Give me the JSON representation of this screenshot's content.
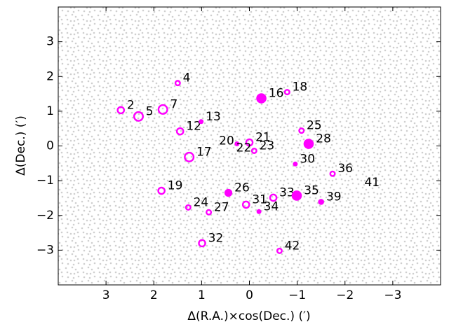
{
  "chart_data": {
    "type": "scatter",
    "xlabel": "Δ(R.A.)×cos(Dec.) (′)",
    "ylabel": "Δ(Dec.) (′)",
    "xlim": [
      4,
      -4
    ],
    "ylim": [
      -4,
      4
    ],
    "xticks": [
      3,
      2,
      1,
      0,
      {
        "value": -1,
        "label": "−1"
      },
      {
        "value": -2,
        "label": "−2"
      },
      {
        "value": -3,
        "label": "−3"
      }
    ],
    "yticks": [
      {
        "value": -3,
        "label": "−3"
      },
      {
        "value": -2,
        "label": "−2"
      },
      {
        "value": -1,
        "label": "−1"
      },
      0,
      1,
      2,
      3
    ],
    "color": "#ff00ff",
    "points": [
      {
        "label": "2",
        "x": 2.69,
        "y": 1.03,
        "marker": "open",
        "size": "m",
        "side": "right"
      },
      {
        "label": "4",
        "x": 1.5,
        "y": 1.81,
        "marker": "open",
        "size": "s",
        "side": "right"
      },
      {
        "label": "5",
        "x": 2.32,
        "y": 0.85,
        "marker": "open",
        "size": "l",
        "side": "right"
      },
      {
        "label": "7",
        "x": 1.81,
        "y": 1.05,
        "marker": "open",
        "size": "l",
        "side": "right"
      },
      {
        "label": "12",
        "x": 1.45,
        "y": 0.42,
        "marker": "open",
        "size": "m",
        "side": "right"
      },
      {
        "label": "13",
        "x": 1.01,
        "y": 0.7,
        "marker": "filled",
        "size": "xs",
        "side": "right"
      },
      {
        "label": "16",
        "x": -0.25,
        "y": 1.37,
        "marker": "filled",
        "size": "l",
        "side": "right"
      },
      {
        "label": "17",
        "x": 1.26,
        "y": -0.32,
        "marker": "open",
        "size": "l",
        "side": "right"
      },
      {
        "label": "18",
        "x": -0.79,
        "y": 1.55,
        "marker": "open",
        "size": "s",
        "side": "right"
      },
      {
        "label": "19",
        "x": 1.84,
        "y": -1.29,
        "marker": "open",
        "size": "m",
        "side": "right"
      },
      {
        "label": "20",
        "x": 0.26,
        "y": 0.06,
        "marker": "filled",
        "size": "xs",
        "side": "left"
      },
      {
        "label": "21",
        "x": 0.0,
        "y": 0.1,
        "marker": "open",
        "size": "m",
        "side": "right"
      },
      {
        "label": "22",
        "x": -0.1,
        "y": -0.14,
        "marker": "none",
        "size": "s",
        "side": "left"
      },
      {
        "label": "23",
        "x": -0.1,
        "y": -0.14,
        "marker": "open",
        "size": "s",
        "side": "right"
      },
      {
        "label": "24",
        "x": 1.28,
        "y": -1.77,
        "marker": "open",
        "size": "s",
        "side": "right"
      },
      {
        "label": "25",
        "x": -1.09,
        "y": 0.44,
        "marker": "open",
        "size": "s",
        "side": "right"
      },
      {
        "label": "26",
        "x": 0.44,
        "y": -1.35,
        "marker": "filled",
        "size": "m",
        "side": "right"
      },
      {
        "label": "27",
        "x": 0.85,
        "y": -1.91,
        "marker": "open",
        "size": "s",
        "side": "right"
      },
      {
        "label": "28",
        "x": -1.24,
        "y": 0.06,
        "marker": "filled",
        "size": "l",
        "side": "right"
      },
      {
        "label": "30",
        "x": -0.96,
        "y": -0.52,
        "marker": "filled",
        "size": "xs",
        "side": "right"
      },
      {
        "label": "31",
        "x": 0.07,
        "y": -1.69,
        "marker": "open",
        "size": "m",
        "side": "right"
      },
      {
        "label": "32",
        "x": 0.99,
        "y": -2.8,
        "marker": "open",
        "size": "m",
        "side": "right"
      },
      {
        "label": "33",
        "x": -0.5,
        "y": -1.49,
        "marker": "open",
        "size": "m",
        "side": "right"
      },
      {
        "label": "34",
        "x": -0.2,
        "y": -1.89,
        "marker": "filled",
        "size": "xs",
        "side": "right"
      },
      {
        "label": "35",
        "x": -0.99,
        "y": -1.43,
        "marker": "filled",
        "size": "l",
        "side": "right"
      },
      {
        "label": "36",
        "x": -1.74,
        "y": -0.8,
        "marker": "open",
        "size": "s",
        "side": "right"
      },
      {
        "label": "39",
        "x": -1.5,
        "y": -1.61,
        "marker": "filled",
        "size": "s",
        "side": "right"
      },
      {
        "label": "41",
        "x": -2.3,
        "y": -1.2,
        "marker": "none",
        "size": "s",
        "side": "right"
      },
      {
        "label": "42",
        "x": -0.63,
        "y": -3.02,
        "marker": "open",
        "size": "s",
        "side": "right"
      }
    ]
  }
}
